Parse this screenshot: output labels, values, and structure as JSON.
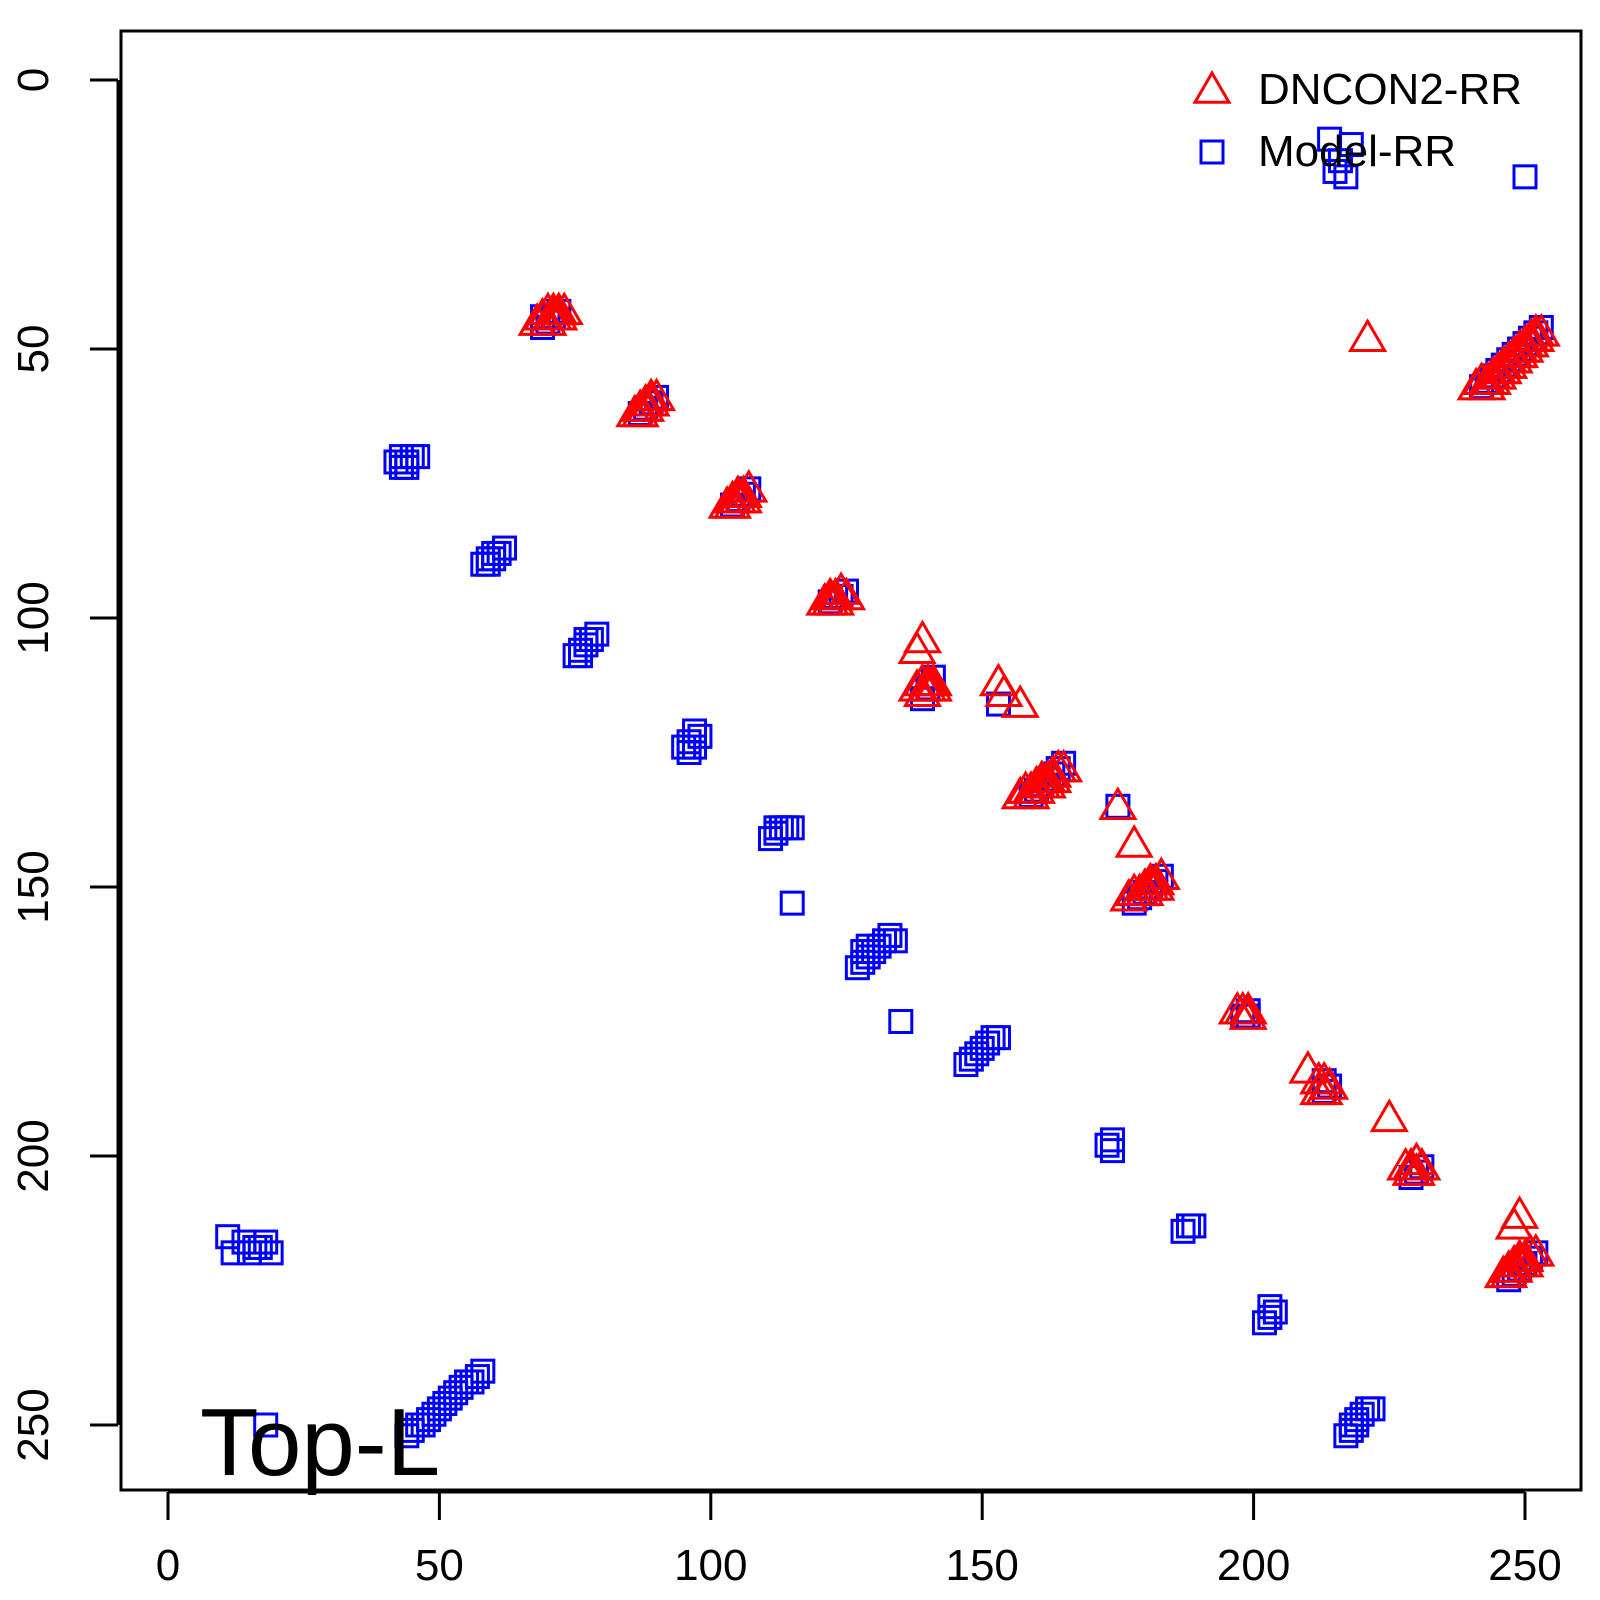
{
  "chart_data": {
    "type": "scatter",
    "title": "",
    "xlabel": "",
    "ylabel": "",
    "panel_label": "Top-L",
    "xlim": [
      -9,
      263
    ],
    "ylim": [
      -9,
      262
    ],
    "y_reversed": true,
    "x_ticks": [
      0,
      50,
      100,
      150,
      200,
      250
    ],
    "y_ticks": [
      0,
      50,
      100,
      150,
      200,
      250
    ],
    "grid": false,
    "legend_position": "top-right",
    "series": [
      {
        "name": "DNCON2-RR",
        "marker": "triangle",
        "color": "#ff0000",
        "points": [
          [
            68,
            45
          ],
          [
            69,
            44
          ],
          [
            70,
            43
          ],
          [
            71,
            43
          ],
          [
            72,
            43
          ],
          [
            73,
            43
          ],
          [
            70,
            45
          ],
          [
            71,
            44
          ],
          [
            72,
            44
          ],
          [
            86,
            62
          ],
          [
            87,
            61
          ],
          [
            88,
            60
          ],
          [
            89,
            59
          ],
          [
            90,
            59
          ],
          [
            87,
            62
          ],
          [
            88,
            61
          ],
          [
            89,
            60
          ],
          [
            103,
            79
          ],
          [
            104,
            78
          ],
          [
            105,
            77
          ],
          [
            106,
            77
          ],
          [
            107,
            76
          ],
          [
            104,
            79
          ],
          [
            105,
            78
          ],
          [
            106,
            78
          ],
          [
            121,
            97
          ],
          [
            122,
            96
          ],
          [
            123,
            96
          ],
          [
            124,
            95
          ],
          [
            125,
            96
          ],
          [
            122,
            97
          ],
          [
            123,
            97
          ],
          [
            138,
            106
          ],
          [
            139,
            104
          ],
          [
            138,
            113
          ],
          [
            139,
            112
          ],
          [
            140,
            112
          ],
          [
            141,
            112
          ],
          [
            139,
            114
          ],
          [
            140,
            113
          ],
          [
            141,
            113
          ],
          [
            153,
            112
          ],
          [
            154,
            114
          ],
          [
            157,
            116
          ],
          [
            157,
            133
          ],
          [
            158,
            132
          ],
          [
            159,
            132
          ],
          [
            160,
            131
          ],
          [
            161,
            130
          ],
          [
            162,
            130
          ],
          [
            163,
            129
          ],
          [
            164,
            128
          ],
          [
            165,
            128
          ],
          [
            159,
            133
          ],
          [
            160,
            132
          ],
          [
            161,
            131
          ],
          [
            162,
            131
          ],
          [
            163,
            130
          ],
          [
            175,
            135
          ],
          [
            178,
            142
          ],
          [
            177,
            152
          ],
          [
            178,
            151
          ],
          [
            179,
            151
          ],
          [
            180,
            150
          ],
          [
            181,
            149
          ],
          [
            182,
            149
          ],
          [
            183,
            148
          ],
          [
            180,
            151
          ],
          [
            181,
            150
          ],
          [
            182,
            150
          ],
          [
            197,
            173
          ],
          [
            198,
            173
          ],
          [
            199,
            173
          ],
          [
            199,
            174
          ],
          [
            210,
            184
          ],
          [
            212,
            186
          ],
          [
            213,
            186
          ],
          [
            214,
            187
          ],
          [
            213,
            188
          ],
          [
            212,
            188
          ],
          [
            225,
            193
          ],
          [
            228,
            202
          ],
          [
            229,
            202
          ],
          [
            230,
            201
          ],
          [
            231,
            202
          ],
          [
            229,
            203
          ],
          [
            230,
            203
          ],
          [
            247,
            221
          ],
          [
            248,
            220
          ],
          [
            249,
            219
          ],
          [
            250,
            219
          ],
          [
            251,
            218
          ],
          [
            252,
            218
          ],
          [
            246,
            222
          ],
          [
            247,
            222
          ],
          [
            248,
            221
          ],
          [
            249,
            220
          ],
          [
            250,
            220
          ],
          [
            248,
            213
          ],
          [
            249,
            211
          ],
          [
            241,
            57
          ],
          [
            242,
            56
          ],
          [
            243,
            56
          ],
          [
            244,
            55
          ],
          [
            245,
            54
          ],
          [
            246,
            53
          ],
          [
            247,
            52
          ],
          [
            248,
            51
          ],
          [
            249,
            50
          ],
          [
            250,
            49
          ],
          [
            251,
            48
          ],
          [
            252,
            47
          ],
          [
            253,
            47
          ],
          [
            243,
            57
          ],
          [
            244,
            56
          ],
          [
            245,
            55
          ],
          [
            246,
            54
          ],
          [
            247,
            53
          ],
          [
            248,
            52
          ],
          [
            249,
            51
          ],
          [
            250,
            50
          ],
          [
            251,
            49
          ],
          [
            252,
            48
          ],
          [
            221,
            48
          ]
        ]
      },
      {
        "name": "Model-RR",
        "marker": "square",
        "color": "#0000ff",
        "points": [
          [
            69,
            46
          ],
          [
            70,
            45
          ],
          [
            71,
            44
          ],
          [
            72,
            43
          ],
          [
            69,
            44
          ],
          [
            87,
            62
          ],
          [
            88,
            61
          ],
          [
            89,
            60
          ],
          [
            90,
            59
          ],
          [
            104,
            79
          ],
          [
            105,
            78
          ],
          [
            106,
            77
          ],
          [
            107,
            76
          ],
          [
            122,
            97
          ],
          [
            123,
            96
          ],
          [
            124,
            96
          ],
          [
            125,
            95
          ],
          [
            139,
            115
          ],
          [
            140,
            113
          ],
          [
            141,
            111
          ],
          [
            153,
            116
          ],
          [
            159,
            133
          ],
          [
            160,
            132
          ],
          [
            161,
            131
          ],
          [
            162,
            130
          ],
          [
            163,
            129
          ],
          [
            164,
            128
          ],
          [
            165,
            127
          ],
          [
            175,
            135
          ],
          [
            178,
            153
          ],
          [
            179,
            152
          ],
          [
            180,
            151
          ],
          [
            181,
            150
          ],
          [
            182,
            149
          ],
          [
            183,
            148
          ],
          [
            198,
            174
          ],
          [
            199,
            174
          ],
          [
            199,
            173
          ],
          [
            213,
            188
          ],
          [
            214,
            187
          ],
          [
            213,
            186
          ],
          [
            229,
            204
          ],
          [
            230,
            203
          ],
          [
            231,
            202
          ],
          [
            247,
            223
          ],
          [
            248,
            222
          ],
          [
            249,
            221
          ],
          [
            250,
            220
          ],
          [
            251,
            219
          ],
          [
            252,
            218
          ],
          [
            242,
            57
          ],
          [
            243,
            56
          ],
          [
            244,
            55
          ],
          [
            245,
            54
          ],
          [
            246,
            53
          ],
          [
            247,
            52
          ],
          [
            248,
            51
          ],
          [
            249,
            50
          ],
          [
            250,
            49
          ],
          [
            251,
            48
          ],
          [
            252,
            47
          ],
          [
            253,
            46
          ],
          [
            42,
            71
          ],
          [
            43,
            72
          ],
          [
            44,
            71
          ],
          [
            45,
            70
          ],
          [
            46,
            70
          ],
          [
            43,
            70
          ],
          [
            44,
            72
          ],
          [
            58,
            90
          ],
          [
            59,
            89
          ],
          [
            60,
            89
          ],
          [
            61,
            88
          ],
          [
            62,
            87
          ],
          [
            59,
            90
          ],
          [
            60,
            88
          ],
          [
            75,
            107
          ],
          [
            76,
            106
          ],
          [
            77,
            105
          ],
          [
            78,
            104
          ],
          [
            79,
            103
          ],
          [
            76,
            107
          ],
          [
            77,
            104
          ],
          [
            96,
            125
          ],
          [
            97,
            124
          ],
          [
            98,
            122
          ],
          [
            95,
            124
          ],
          [
            96,
            123
          ],
          [
            97,
            121
          ],
          [
            111,
            141
          ],
          [
            112,
            140
          ],
          [
            113,
            139
          ],
          [
            114,
            139
          ],
          [
            115,
            139
          ],
          [
            112,
            139
          ],
          [
            115,
            153
          ],
          [
            127,
            165
          ],
          [
            128,
            164
          ],
          [
            129,
            163
          ],
          [
            130,
            162
          ],
          [
            131,
            161
          ],
          [
            132,
            160
          ],
          [
            133,
            159
          ],
          [
            134,
            160
          ],
          [
            128,
            162
          ],
          [
            129,
            161
          ],
          [
            135,
            175
          ],
          [
            147,
            183
          ],
          [
            148,
            182
          ],
          [
            149,
            181
          ],
          [
            150,
            180
          ],
          [
            151,
            179
          ],
          [
            152,
            178
          ],
          [
            153,
            178
          ],
          [
            173,
            198
          ],
          [
            174,
            199
          ],
          [
            174,
            197
          ],
          [
            187,
            214
          ],
          [
            188,
            213
          ],
          [
            189,
            213
          ],
          [
            202,
            231
          ],
          [
            203,
            230
          ],
          [
            204,
            229
          ],
          [
            203,
            228
          ],
          [
            217,
            252
          ],
          [
            218,
            250
          ],
          [
            219,
            249
          ],
          [
            220,
            248
          ],
          [
            221,
            247
          ],
          [
            222,
            247
          ],
          [
            218,
            251
          ],
          [
            219,
            250
          ],
          [
            44,
            252
          ],
          [
            45,
            251
          ],
          [
            46,
            250
          ],
          [
            47,
            250
          ],
          [
            48,
            249
          ],
          [
            49,
            248
          ],
          [
            50,
            247
          ],
          [
            51,
            246
          ],
          [
            52,
            245
          ],
          [
            53,
            244
          ],
          [
            54,
            243
          ],
          [
            55,
            242
          ],
          [
            56,
            242
          ],
          [
            57,
            241
          ],
          [
            58,
            240
          ],
          [
            18,
            250
          ],
          [
            11,
            215
          ],
          [
            12,
            218
          ],
          [
            14,
            216
          ],
          [
            15,
            218
          ],
          [
            16,
            217
          ],
          [
            17,
            217
          ],
          [
            18,
            216
          ],
          [
            19,
            218
          ],
          [
            214,
            11
          ],
          [
            216,
            15
          ],
          [
            217,
            18
          ],
          [
            218,
            12
          ],
          [
            215,
            17
          ],
          [
            250,
            18
          ]
        ]
      }
    ]
  }
}
